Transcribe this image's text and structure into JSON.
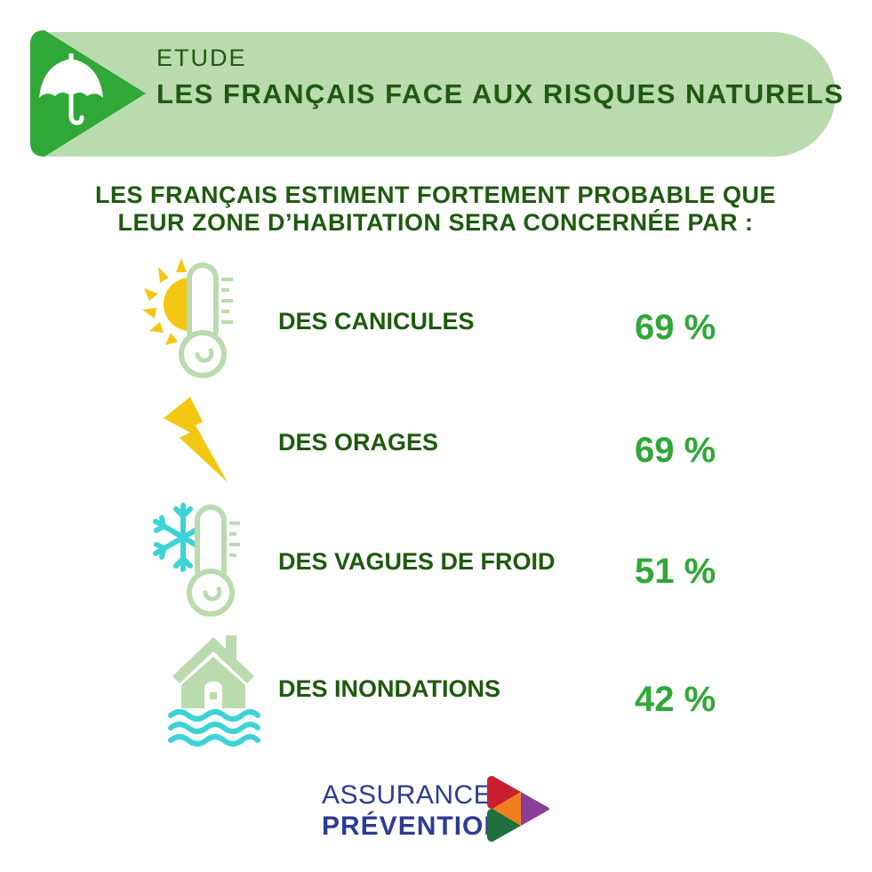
{
  "header": {
    "kicker": "ETUDE",
    "title": "LES FRANÇAIS FACE AUX RISQUES NATURELS",
    "badge_icon": "umbrella-icon"
  },
  "intro": {
    "line1": "LES FRANÇAIS ESTIMENT FORTEMENT PROBABLE QUE",
    "line2": "LEUR ZONE D’HABITATION SERA CONCERNÉE PAR :"
  },
  "risks": [
    {
      "icon": "heatwave-icon",
      "label": "DES CANICULES",
      "value": "69 %"
    },
    {
      "icon": "lightning-icon",
      "label": "DES ORAGES",
      "value": "69 %"
    },
    {
      "icon": "cold-wave-icon",
      "label": "DES VAGUES DE FROID",
      "value": "51 %"
    },
    {
      "icon": "flood-icon",
      "label": "DES INONDATIONS",
      "value": "42 %"
    }
  ],
  "footer": {
    "logo_line1": "ASSURANCE",
    "logo_line2": "PRÉVENTION"
  },
  "colors": {
    "banner_bg": "#b9dbae",
    "badge_green": "#2fa838",
    "heading_green": "#1e5a0e",
    "value_green": "#2fa838",
    "logo_blue": "#2b3d92"
  }
}
